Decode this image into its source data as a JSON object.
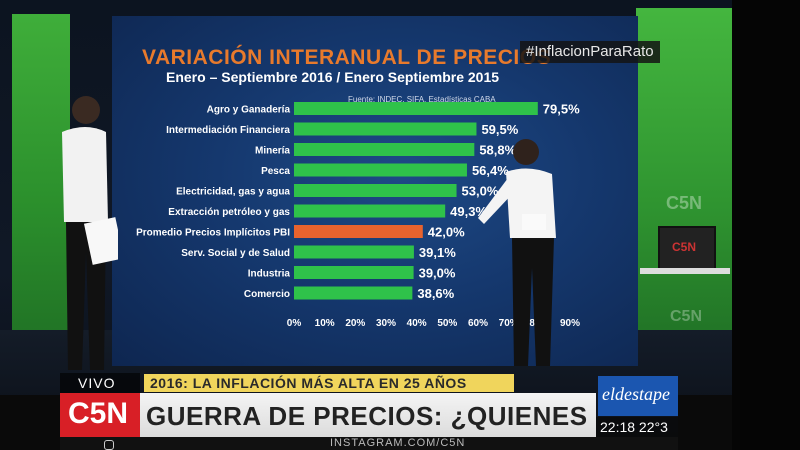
{
  "colors": {
    "bar_default": "#2fc24a",
    "bar_highlight": "#e8632e",
    "title": "#e87a2c",
    "subtitle": "#ffffff",
    "label": "#ffffff",
    "screen_bg": "#15386e",
    "headline_accent": "#f0d55c",
    "c5n_red": "#d81f26",
    "eldestape_blue": "#1b56b0"
  },
  "overlay": {
    "hashtag": "#InflacionParaRato",
    "vivo": "VIVO",
    "channel_logo": "C5N",
    "headline_top": "2016: LA INFLACIÓN MÁS ALTA EN 25 AÑOS",
    "headline_main": "GUERRA DE PRECIOS: ¿QUIENES GANARON?",
    "partner_logo": "eldestape",
    "clock": "22:18 22°3",
    "instagram": "INSTAGRAM.COM/C5N",
    "watermark": "C5N",
    "monitor_logo": "C5N"
  },
  "chart_data": {
    "type": "bar",
    "orientation": "horizontal",
    "title": "VARIACIÓN INTERANUAL DE PRECIOS",
    "subtitle": "Enero – Septiembre 2016 / Enero Septiembre 2015",
    "source": "Fuente: INDEC, SIFA, Estadísticas CABA",
    "categories": [
      "Agro y Ganadería",
      "Intermediación Financiera",
      "Minería",
      "Pesca",
      "Electricidad, gas y agua",
      "Extracción petróleo y gas",
      "Promedio Precios Implícitos PBI",
      "Serv. Social y de Salud",
      "Industria",
      "Comercio"
    ],
    "values": [
      79.5,
      59.5,
      58.8,
      56.4,
      53.0,
      49.3,
      42.0,
      39.1,
      39.0,
      38.6
    ],
    "value_labels": [
      "79,5%",
      "59,5%",
      "58,8%",
      "56,4%",
      "53,0%",
      "49,3%",
      "42,0%",
      "39,1%",
      "39,0%",
      "38,6%"
    ],
    "highlight_index": 6,
    "xlim": [
      0,
      90
    ],
    "xticks": [
      "0%",
      "10%",
      "20%",
      "30%",
      "40%",
      "50%",
      "60%",
      "70%",
      "80%",
      "90%"
    ],
    "grid": false,
    "legend": "none"
  }
}
